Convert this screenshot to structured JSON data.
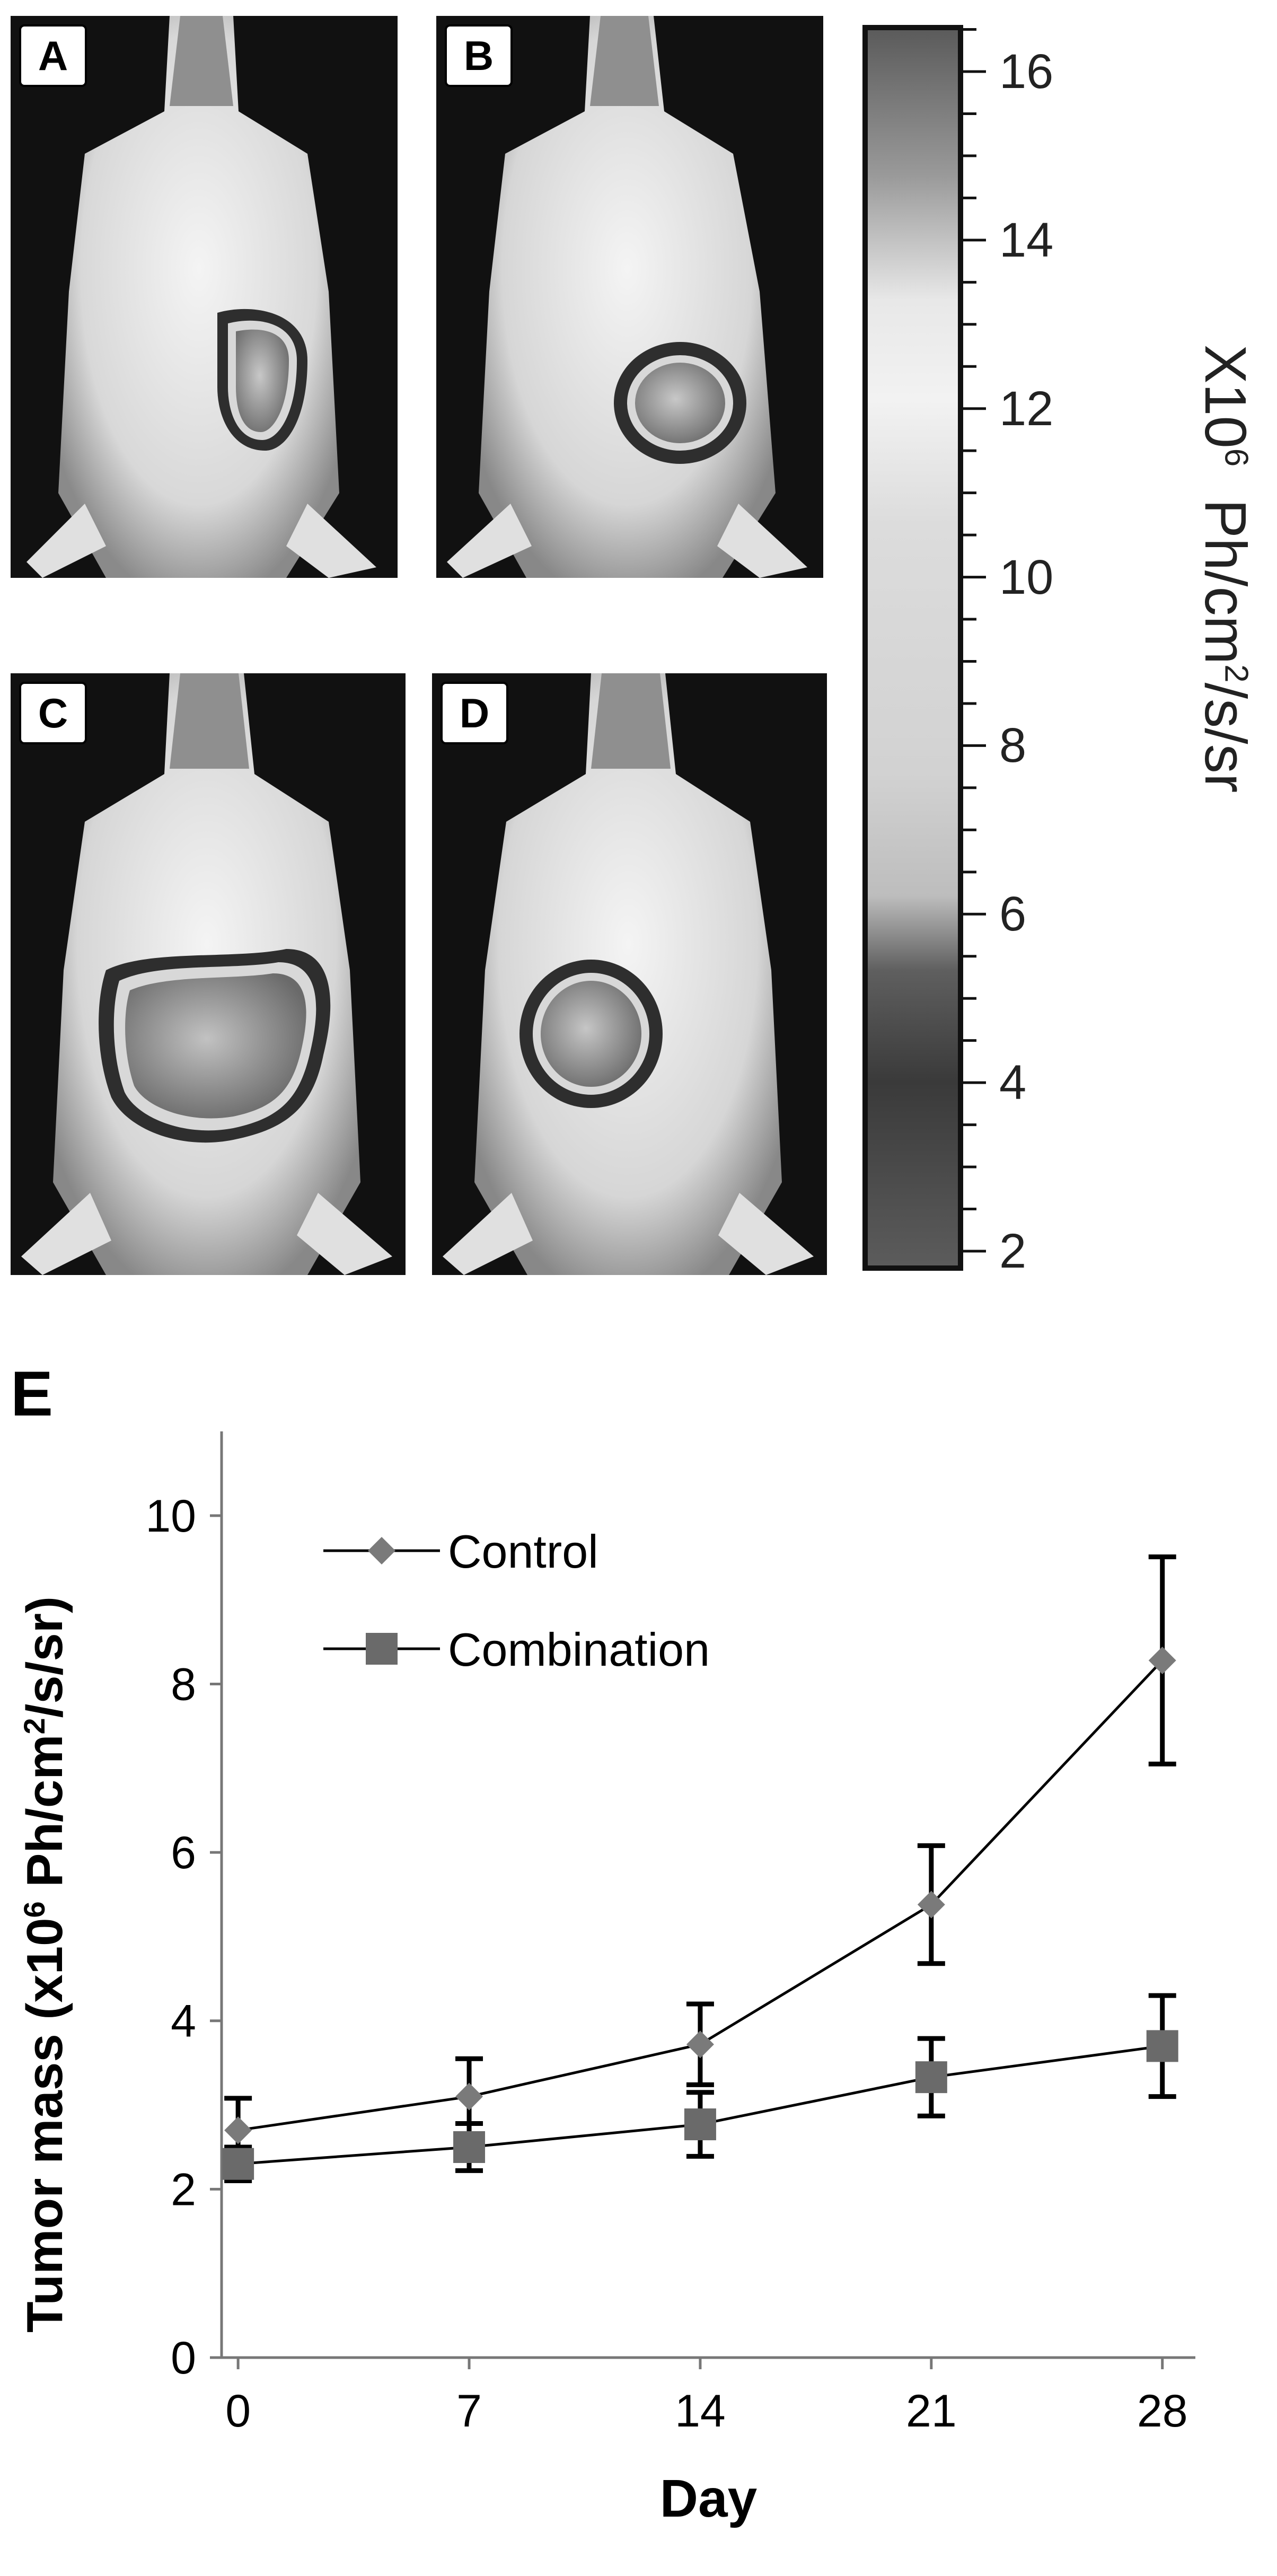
{
  "panels": [
    {
      "label": "A"
    },
    {
      "label": "B"
    },
    {
      "label": "C"
    },
    {
      "label": "D"
    }
  ],
  "colorbar": {
    "ticks": [
      "16",
      "14",
      "12",
      "10",
      "8",
      "6",
      "4",
      "2"
    ],
    "title_prefix": "X10",
    "title_exp": "6",
    "title_unit_a": "Ph/cm",
    "title_unit_exp": "2",
    "title_unit_b": "/s/sr"
  },
  "panel_e_label": "E",
  "chart_data": {
    "type": "line",
    "xlabel": "Day",
    "ylabel_prefix": "Tumor mass (x10",
    "ylabel_exp": "6",
    "ylabel_mid": " Ph/cm",
    "ylabel_exp2": "2",
    "ylabel_suffix": "/s/sr)",
    "x": [
      0,
      7,
      14,
      21,
      28
    ],
    "x_ticks": [
      "0",
      "7",
      "14",
      "21",
      "28"
    ],
    "y_ticks": [
      "0",
      "2",
      "4",
      "6",
      "8",
      "10"
    ],
    "ylim": [
      0,
      11
    ],
    "xlim": [
      -0.5,
      29
    ],
    "legend_position": "top-left",
    "series": [
      {
        "name": "Control",
        "marker": "diamond",
        "color": "#7a7a7a",
        "values": [
          2.7,
          3.1,
          3.72,
          5.38,
          8.28
        ],
        "errors": [
          0.38,
          0.45,
          0.48,
          0.7,
          1.23
        ]
      },
      {
        "name": "Combination",
        "marker": "square",
        "color": "#6a6a6a",
        "values": [
          2.3,
          2.5,
          2.77,
          3.33,
          3.7
        ],
        "errors": [
          0.2,
          0.28,
          0.38,
          0.46,
          0.6
        ]
      }
    ]
  }
}
